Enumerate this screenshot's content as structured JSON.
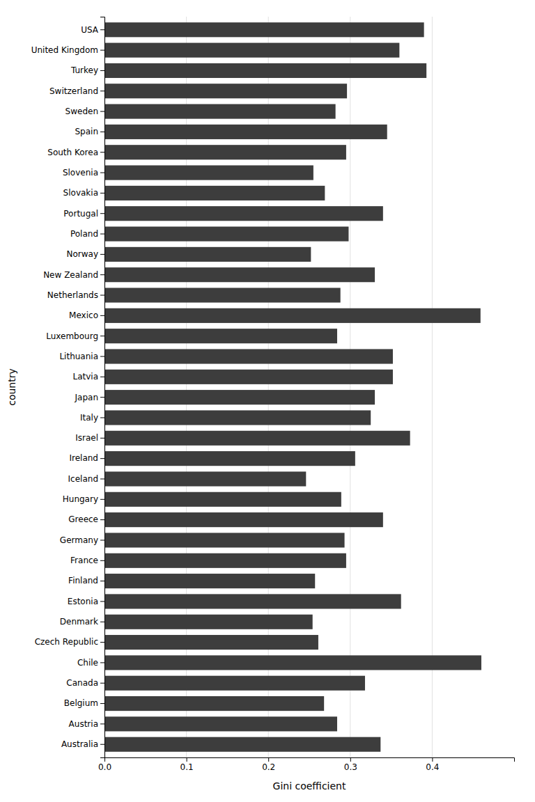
{
  "chart_data": {
    "type": "bar",
    "orientation": "horizontal",
    "categories": [
      "Australia",
      "Austria",
      "Belgium",
      "Canada",
      "Chile",
      "Czech Republic",
      "Denmark",
      "Estonia",
      "Finland",
      "France",
      "Germany",
      "Greece",
      "Hungary",
      "Iceland",
      "Ireland",
      "Israel",
      "Italy",
      "Japan",
      "Latvia",
      "Lithuania",
      "Luxembourg",
      "Mexico",
      "Netherlands",
      "New Zealand",
      "Norway",
      "Poland",
      "Portugal",
      "Slovakia",
      "Slovenia",
      "South Korea",
      "Spain",
      "Sweden",
      "Switzerland",
      "Turkey",
      "United Kingdom",
      "USA"
    ],
    "values": [
      0.337,
      0.284,
      0.268,
      0.318,
      0.46,
      0.261,
      0.254,
      0.362,
      0.257,
      0.295,
      0.293,
      0.34,
      0.289,
      0.246,
      0.306,
      0.373,
      0.325,
      0.33,
      0.352,
      0.352,
      0.284,
      0.459,
      0.288,
      0.33,
      0.252,
      0.298,
      0.34,
      0.269,
      0.255,
      0.295,
      0.345,
      0.282,
      0.296,
      0.393,
      0.36,
      0.39
    ],
    "color": "#3d3d3d",
    "xlabel": "Gini coefficient",
    "ylabel": "country",
    "xlim": [
      0.0,
      0.5
    ],
    "xticks": [
      {
        "value": 0.0,
        "label": "0.0"
      },
      0.1,
      0.2,
      0.3,
      0.4
    ],
    "grid": true
  }
}
